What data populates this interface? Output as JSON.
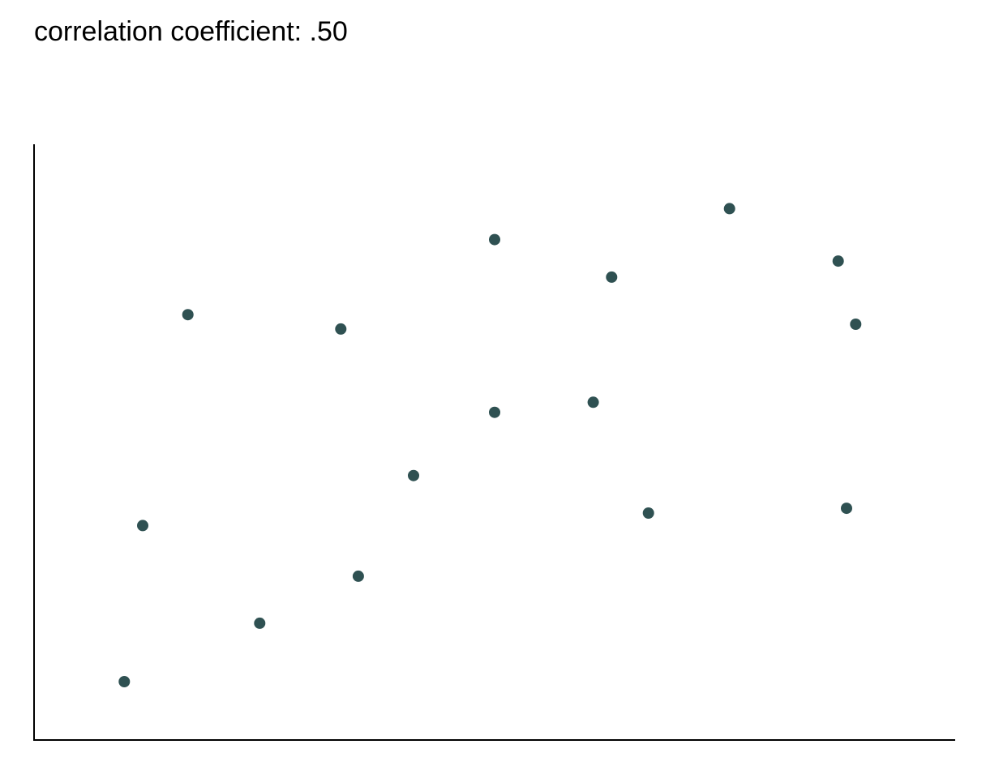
{
  "title_text": "correlation coefficient: .50",
  "colors": {
    "point": "#2f5152",
    "axis": "#000000"
  },
  "chart_data": {
    "type": "scatter",
    "title": "correlation coefficient: .50",
    "xlabel": "",
    "ylabel": "",
    "xlim": [
      0,
      100
    ],
    "ylim": [
      0,
      100
    ],
    "grid": false,
    "legend": "none",
    "axis_ticks": false,
    "points": [
      {
        "x": 9.8,
        "y": 9.8
      },
      {
        "x": 11.8,
        "y": 36.0
      },
      {
        "x": 16.7,
        "y": 71.4
      },
      {
        "x": 24.5,
        "y": 19.6
      },
      {
        "x": 33.3,
        "y": 69.0
      },
      {
        "x": 35.2,
        "y": 27.5
      },
      {
        "x": 41.2,
        "y": 44.4
      },
      {
        "x": 50.0,
        "y": 84.0
      },
      {
        "x": 50.0,
        "y": 55.0
      },
      {
        "x": 60.7,
        "y": 56.7
      },
      {
        "x": 62.7,
        "y": 77.7
      },
      {
        "x": 66.7,
        "y": 38.1
      },
      {
        "x": 75.5,
        "y": 89.2
      },
      {
        "x": 87.3,
        "y": 80.4
      },
      {
        "x": 88.2,
        "y": 38.9
      },
      {
        "x": 89.2,
        "y": 69.8
      }
    ]
  }
}
